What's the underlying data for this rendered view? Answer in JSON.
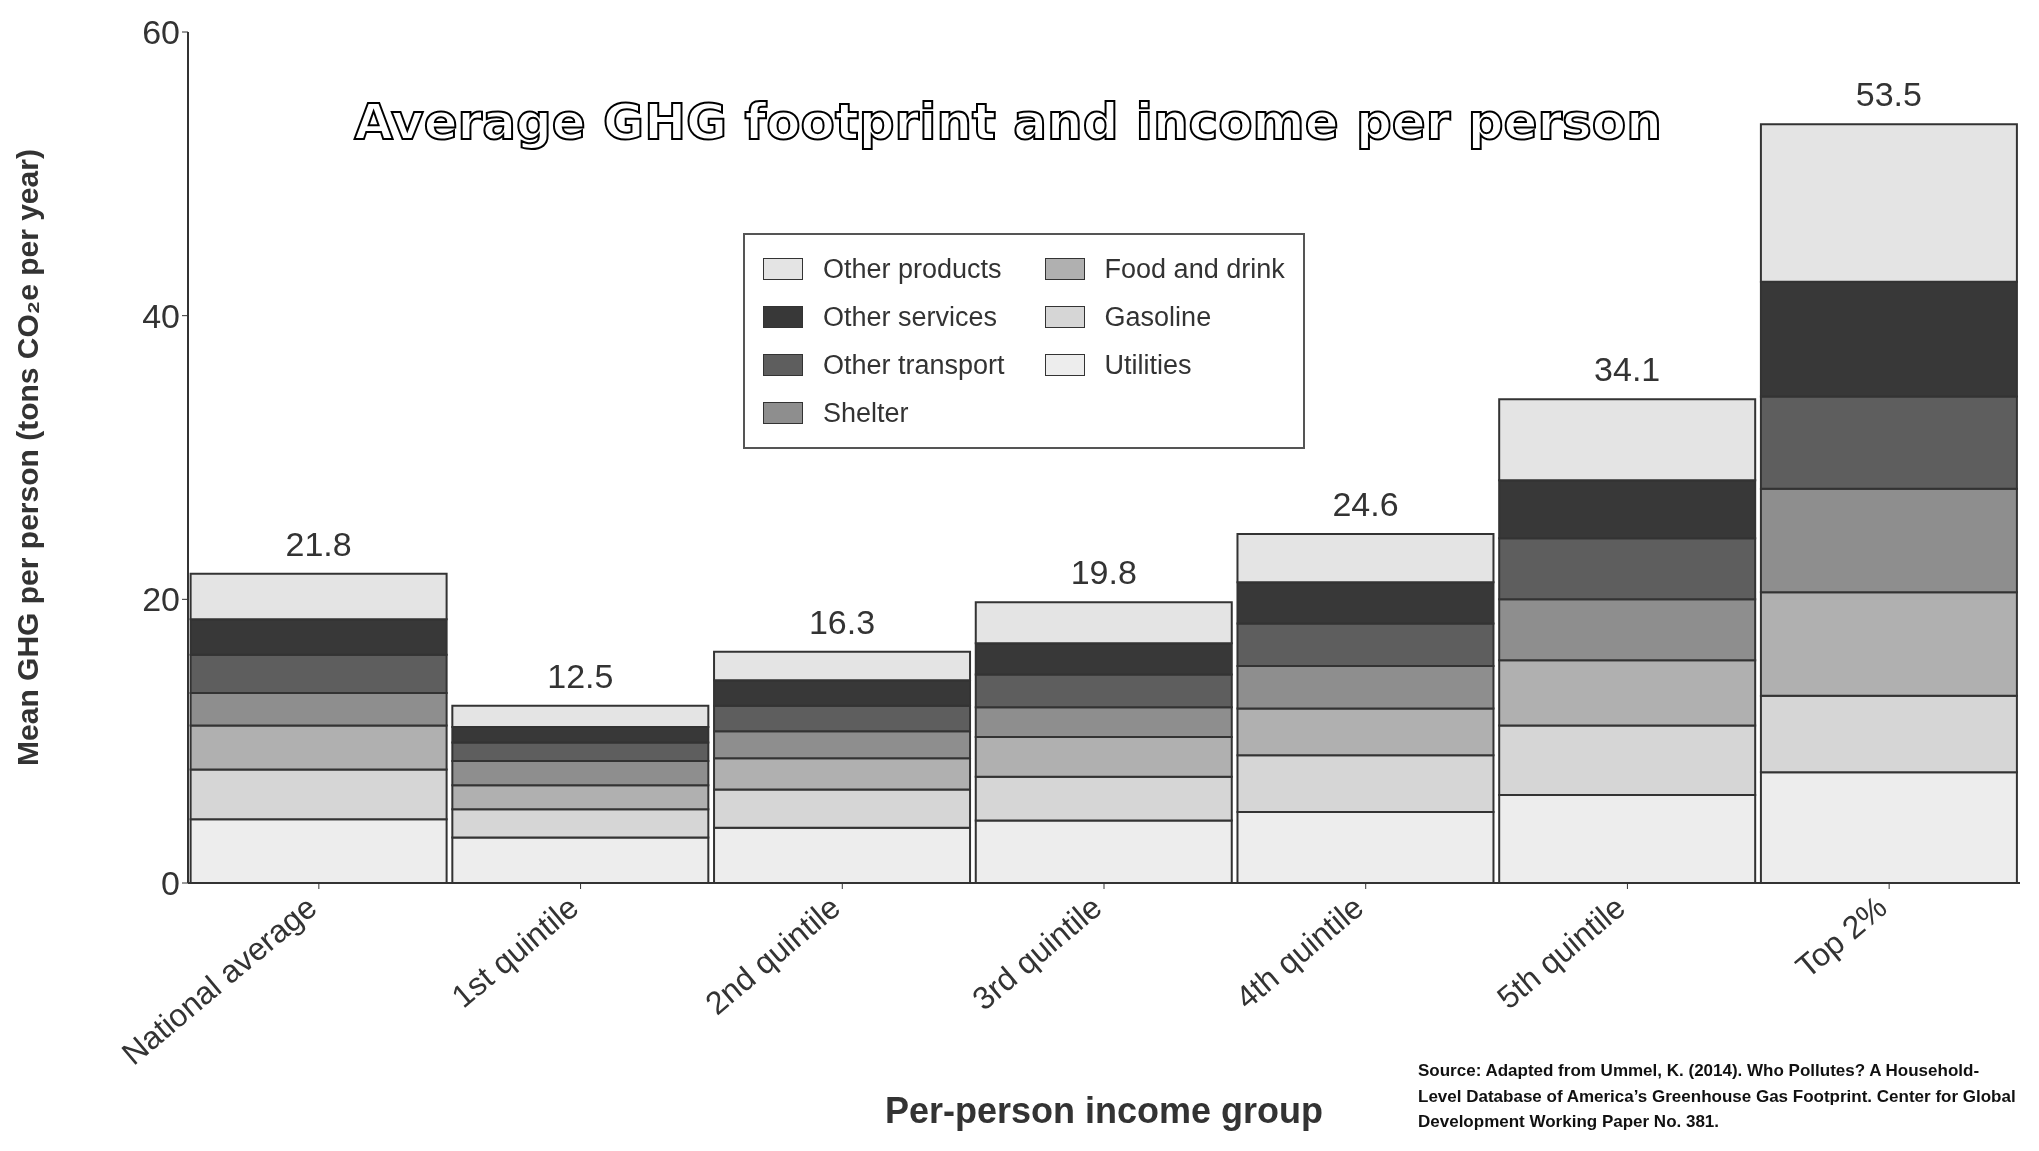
{
  "chart_data": {
    "type": "bar",
    "stacked": true,
    "title": "Average GHG footprint and income per person",
    "xlabel": "Per-person income group",
    "ylabel": "Mean GHG per person (tons CO₂e per year)",
    "categories": [
      "National average",
      "1st quintile",
      "2nd quintile",
      "3rd quintile",
      "4th quintile",
      "5th quintile",
      "Top 2%"
    ],
    "series": [
      {
        "name": "Utilities",
        "color": "#ededed",
        "values": [
          4.5,
          3.2,
          3.9,
          4.4,
          5.0,
          6.2,
          7.8
        ]
      },
      {
        "name": "Gasoline",
        "color": "#d6d6d6",
        "values": [
          3.5,
          2.0,
          2.7,
          3.1,
          4.0,
          4.9,
          5.4
        ]
      },
      {
        "name": "Food and drink",
        "color": "#b0b0b0",
        "values": [
          3.1,
          1.7,
          2.2,
          2.8,
          3.3,
          4.6,
          7.3
        ]
      },
      {
        "name": "Shelter",
        "color": "#8e8e8e",
        "values": [
          2.3,
          1.7,
          1.9,
          2.1,
          3.0,
          4.3,
          7.3
        ]
      },
      {
        "name": "Other transport",
        "color": "#5e5e5e",
        "values": [
          2.7,
          1.3,
          1.8,
          2.3,
          3.0,
          4.3,
          6.5
        ]
      },
      {
        "name": "Other services",
        "color": "#383838",
        "values": [
          2.5,
          1.1,
          1.8,
          2.2,
          2.9,
          4.1,
          8.1
        ]
      },
      {
        "name": "Other products",
        "color": "#e4e4e4",
        "values": [
          3.2,
          1.5,
          2.0,
          2.9,
          3.4,
          5.7,
          11.1
        ]
      }
    ],
    "totals": [
      "21.8",
      "12.5",
      "16.3",
      "19.8",
      "24.6",
      "34.1",
      "53.5"
    ],
    "ylim": [
      0,
      60
    ],
    "yticks": [
      0,
      20,
      40,
      60
    ],
    "legend": "top",
    "annotations": [
      "Source: Adapted from Ummel, K. (2014). Who Pollutes? A Household-Level Database of America’s Greenhouse Gas Footprint. Center for Global Development Working Paper No. 381."
    ]
  }
}
